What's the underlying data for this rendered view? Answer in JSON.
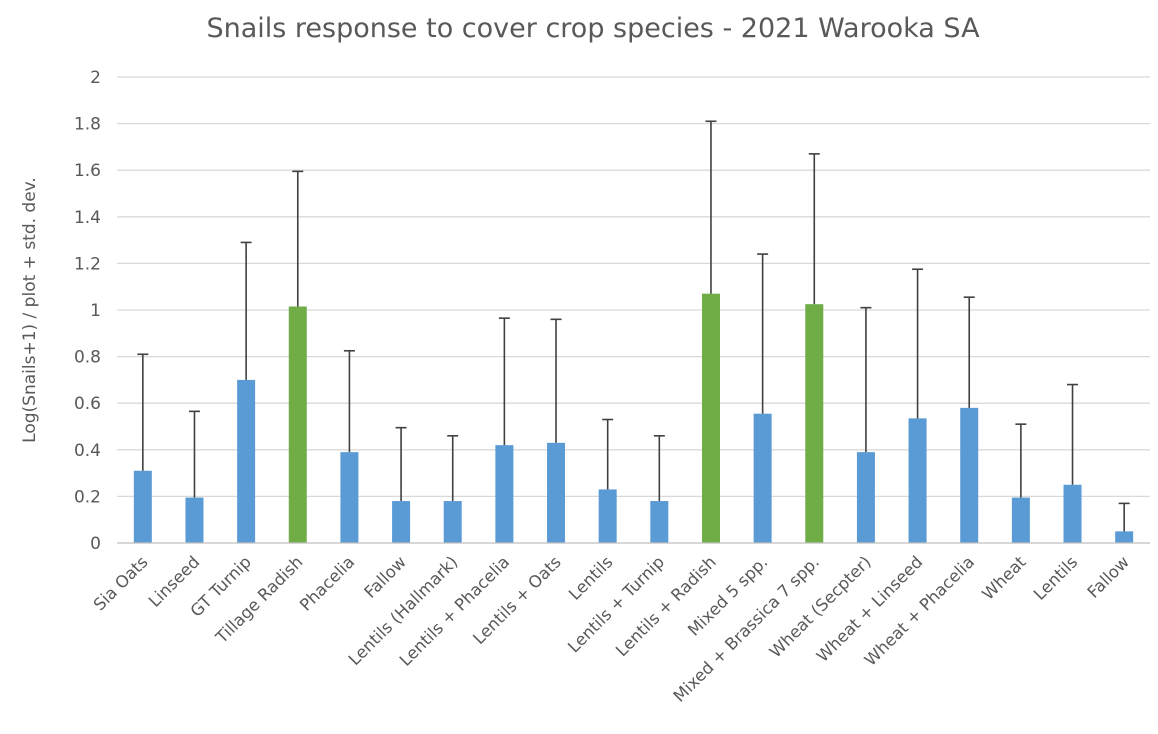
{
  "chart_data": {
    "type": "bar",
    "title": "Snails response to cover crop species - 2021 Warooka SA",
    "xlabel": "",
    "ylabel": "Log(Snails+1) / plot + std. dev.",
    "ylim": [
      0,
      2
    ],
    "yticks": [
      "0",
      "0.2",
      "0.4",
      "0.6",
      "0.8",
      "1",
      "1.2",
      "1.4",
      "1.6",
      "1.8",
      "2"
    ],
    "grid": true,
    "legend": "none",
    "colors": {
      "default": "#5b9bd5",
      "highlight": "#70ad47",
      "error_bar": "#404040",
      "text": "#595959",
      "grid": "#d9d9d9"
    },
    "categories": [
      "Sia Oats",
      "Linseed",
      "GT Turnip",
      "Tillage Radish",
      "Phacelia",
      "Fallow",
      "Lentils (Hallmark)",
      "Lentils + Phacelia",
      "Lentils + Oats",
      "Lentils",
      "Lentils + Turnip",
      "Lentils + Radish",
      "Mixed 5 spp.",
      "Mixed + Brassica 7 spp.",
      "Wheat (Secpter)",
      "Wheat + Linseed",
      "Wheat + Phacelia",
      "Wheat",
      "Lentils",
      "Fallow"
    ],
    "values": [
      0.31,
      0.195,
      0.7,
      1.015,
      0.39,
      0.18,
      0.18,
      0.42,
      0.43,
      0.23,
      0.18,
      1.07,
      0.555,
      1.025,
      0.39,
      0.535,
      0.58,
      0.195,
      0.25,
      0.05
    ],
    "error_upper": [
      0.81,
      0.565,
      1.29,
      1.595,
      0.825,
      0.495,
      0.46,
      0.965,
      0.96,
      0.53,
      0.46,
      1.81,
      1.24,
      1.67,
      1.01,
      1.175,
      1.055,
      0.51,
      0.68,
      0.17
    ],
    "highlighted": [
      false,
      false,
      false,
      true,
      false,
      false,
      false,
      false,
      false,
      false,
      false,
      true,
      false,
      true,
      false,
      false,
      false,
      false,
      false,
      false
    ]
  }
}
